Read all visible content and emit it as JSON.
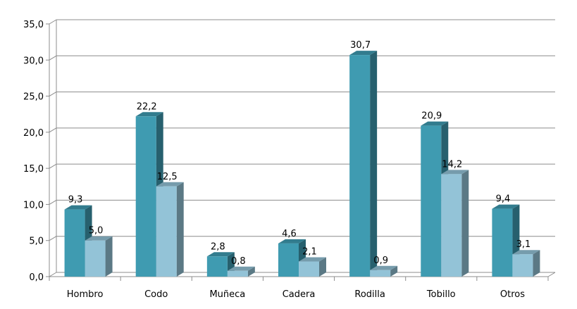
{
  "chart_data": {
    "type": "bar",
    "categories": [
      "Hombro",
      "Codo",
      "Muñeca",
      "Cadera",
      "Rodilla",
      "Tobillo",
      "Otros"
    ],
    "series": [
      {
        "values": [
          9.3,
          22.2,
          2.8,
          4.6,
          30.7,
          20.9,
          9.4
        ],
        "labels": [
          "9,3",
          "22,2",
          "2,8",
          "4,6",
          "30,7",
          "20,9",
          "9,4"
        ],
        "color": "#3f9bb1"
      },
      {
        "values": [
          5.0,
          12.5,
          0.8,
          2.1,
          0.9,
          14.2,
          3.1
        ],
        "labels": [
          "5,0",
          "12,5",
          "0,8",
          "2,1",
          "0,9",
          "14,2",
          "3,1"
        ],
        "color": "#93c3d7"
      }
    ],
    "title": "",
    "xlabel": "",
    "ylabel": "",
    "ylim": [
      0,
      35
    ],
    "yticks": [
      0,
      5,
      10,
      15,
      20,
      25,
      30,
      35
    ],
    "ytick_labels": [
      "0,0",
      "5,0",
      "10,0",
      "15,0",
      "20,0",
      "25,0",
      "30,0",
      "35,0"
    ],
    "grid": true,
    "legend": "none",
    "style": "3d-column"
  }
}
